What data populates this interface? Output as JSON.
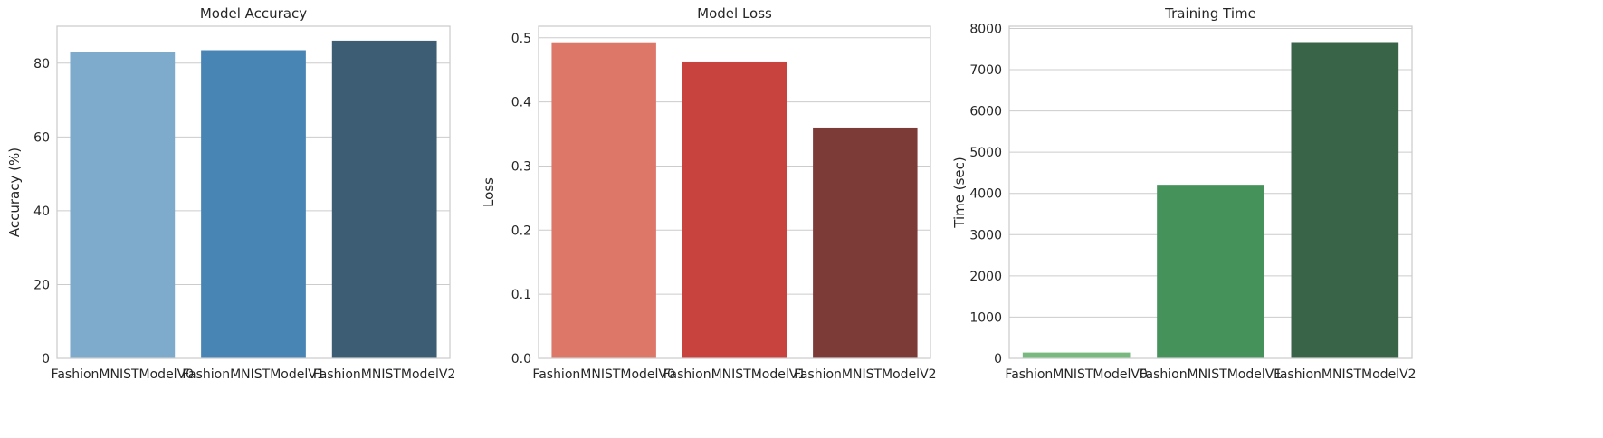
{
  "chart_data": [
    {
      "type": "bar",
      "title": "Model Accuracy",
      "xlabel": "",
      "ylabel": "Accuracy (%)",
      "categories": [
        "FashionMNISTModelV0",
        "FashionMNISTModelV1",
        "FashionMNISTModelV2"
      ],
      "values": [
        83.1,
        83.5,
        86.1
      ],
      "colors": [
        "#7eaacb",
        "#4884b4",
        "#3c5d74"
      ],
      "ylim": [
        0,
        90
      ],
      "yticks": [
        0,
        20,
        40,
        60,
        80
      ],
      "ytick_labels": [
        "0",
        "20",
        "40",
        "60",
        "80"
      ],
      "grid": true,
      "legend": "none"
    },
    {
      "type": "bar",
      "title": "Model Loss",
      "xlabel": "",
      "ylabel": "Loss",
      "categories": [
        "FashionMNISTModelV0",
        "FashionMNISTModelV1",
        "FashionMNISTModelV2"
      ],
      "values": [
        0.493,
        0.463,
        0.36
      ],
      "colors": [
        "#dd7869",
        "#c9433e",
        "#7d3b38"
      ],
      "ylim": [
        0,
        0.518
      ],
      "yticks": [
        0,
        0.1,
        0.2,
        0.3,
        0.4,
        0.5
      ],
      "ytick_labels": [
        "0.0",
        "0.1",
        "0.2",
        "0.3",
        "0.4",
        "0.5"
      ],
      "grid": true,
      "legend": "none"
    },
    {
      "type": "bar",
      "title": "Training Time",
      "xlabel": "",
      "ylabel": "Time (sec)",
      "categories": [
        "FashionMNISTModelV0",
        "FashionMNISTModelV1",
        "FashionMNISTModelV2"
      ],
      "values": [
        140,
        4210,
        7670
      ],
      "colors": [
        "#78b97e",
        "#45935b",
        "#3a6448"
      ],
      "ylim": [
        0,
        8054
      ],
      "yticks": [
        0,
        1000,
        2000,
        3000,
        4000,
        5000,
        6000,
        7000,
        8000
      ],
      "ytick_labels": [
        "0",
        "1000",
        "2000",
        "3000",
        "4000",
        "5000",
        "6000",
        "7000",
        "8000"
      ],
      "grid": true,
      "legend": "none"
    }
  ]
}
